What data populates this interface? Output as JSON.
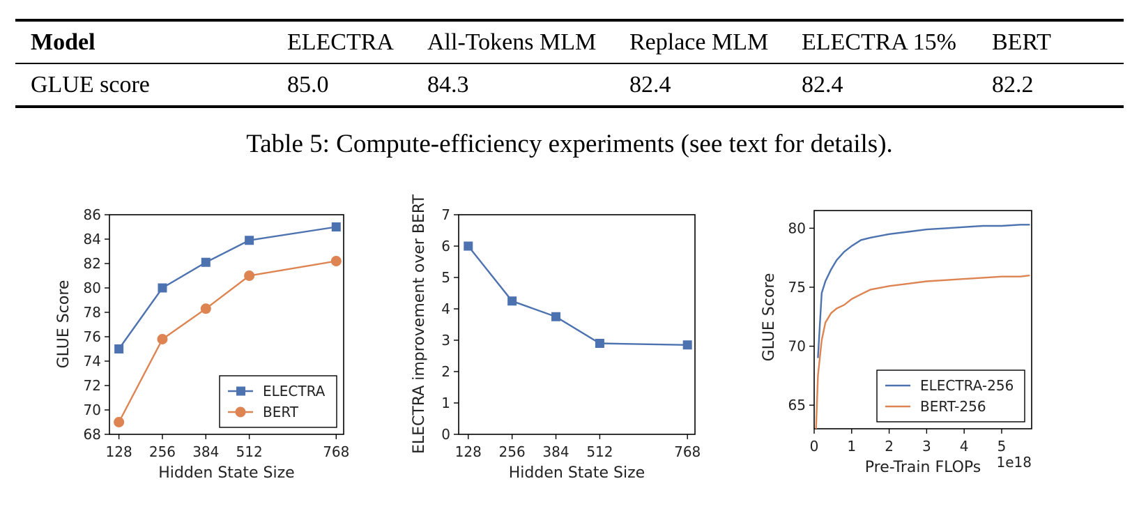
{
  "table": {
    "columns": [
      "Model",
      "ELECTRA",
      "All-Tokens MLM",
      "Replace MLM",
      "ELECTRA 15%",
      "BERT"
    ],
    "row": [
      "GLUE score",
      "85.0",
      "84.3",
      "82.4",
      "82.4",
      "82.2"
    ]
  },
  "caption": "Table 5: Compute-efficiency experiments (see text for details).",
  "colors": {
    "electra": "#4c72b0",
    "bert": "#dd8452"
  },
  "chart_data": [
    {
      "type": "line",
      "xlabel": "Hidden State Size",
      "ylabel": "GLUE Score",
      "x": [
        128,
        256,
        384,
        512,
        768
      ],
      "xticks": [
        128,
        256,
        384,
        512,
        768
      ],
      "ylim": [
        68,
        86
      ],
      "yticks": [
        68,
        70,
        72,
        74,
        76,
        78,
        80,
        82,
        84,
        86
      ],
      "legend_position": "lower-right",
      "series": [
        {
          "name": "ELECTRA",
          "marker": "square",
          "values": [
            75.0,
            80.0,
            82.1,
            83.9,
            85.0
          ]
        },
        {
          "name": "BERT",
          "marker": "circle",
          "values": [
            69.0,
            75.8,
            78.3,
            81.0,
            82.2
          ]
        }
      ]
    },
    {
      "type": "line",
      "xlabel": "Hidden State Size",
      "ylabel": "ELECTRA improvement over BERT",
      "x": [
        128,
        256,
        384,
        512,
        768
      ],
      "xticks": [
        128,
        256,
        384,
        512,
        768
      ],
      "ylim": [
        0,
        7
      ],
      "yticks": [
        0,
        1,
        2,
        3,
        4,
        5,
        6,
        7
      ],
      "series": [
        {
          "name": "",
          "marker": "square",
          "values": [
            6.0,
            4.25,
            3.75,
            2.9,
            2.85
          ]
        }
      ]
    },
    {
      "type": "line",
      "xlabel": "Pre-Train FLOPs",
      "x_offset_label": "1e18",
      "ylabel": "GLUE Score",
      "xlim": [
        0,
        5.8
      ],
      "xticks": [
        0,
        1,
        2,
        3,
        4,
        5
      ],
      "ylim": [
        63,
        81.5
      ],
      "yticks": [
        65,
        70,
        75,
        80
      ],
      "legend_position": "lower-right",
      "series": [
        {
          "name": "ELECTRA-256",
          "x": [
            0.1,
            0.2,
            0.3,
            0.45,
            0.6,
            0.8,
            1.0,
            1.25,
            1.5,
            2.0,
            2.5,
            3.0,
            3.5,
            4.0,
            4.5,
            5.0,
            5.5,
            5.75
          ],
          "values": [
            69.0,
            74.5,
            75.5,
            76.5,
            77.3,
            78.0,
            78.5,
            79.0,
            79.2,
            79.5,
            79.7,
            79.9,
            80.0,
            80.1,
            80.2,
            80.2,
            80.3,
            80.3
          ]
        },
        {
          "name": "BERT-256",
          "x": [
            0.05,
            0.1,
            0.2,
            0.3,
            0.45,
            0.6,
            0.8,
            1.0,
            1.25,
            1.5,
            2.0,
            2.5,
            3.0,
            3.5,
            4.0,
            4.5,
            5.0,
            5.5,
            5.75
          ],
          "values": [
            63.0,
            67.5,
            70.5,
            72.0,
            72.8,
            73.2,
            73.5,
            74.0,
            74.4,
            74.8,
            75.1,
            75.3,
            75.5,
            75.6,
            75.7,
            75.8,
            75.9,
            75.9,
            76.0
          ]
        }
      ]
    }
  ]
}
